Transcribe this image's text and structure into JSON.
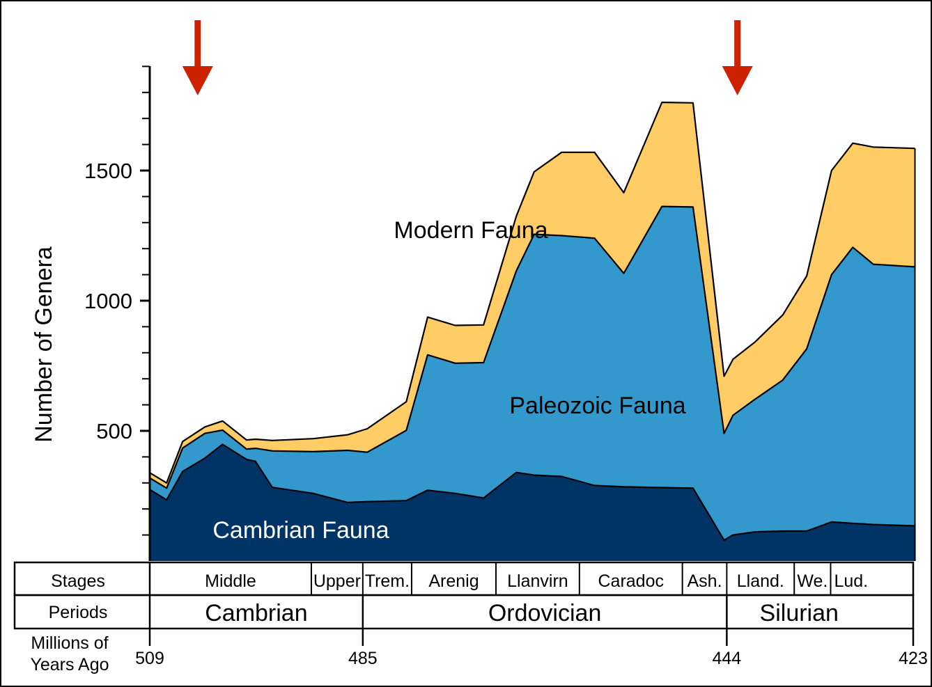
{
  "chart_data": {
    "type": "area",
    "stacked": true,
    "ylabel": "Number of Genera",
    "xlabel": "",
    "ylim": [
      0,
      1900
    ],
    "y_ticks": [
      500,
      1000,
      1500
    ],
    "y_minor_step": 100,
    "x_axis_reversed": true,
    "x": [
      509.0,
      507.1,
      505.3,
      502.8,
      500.8,
      498.1,
      497.1,
      495.2,
      490.6,
      486.7,
      484.5,
      480.1,
      477.7,
      474.6,
      471.4,
      467.7,
      465.7,
      462.6,
      458.9,
      455.6,
      451.3,
      447.8,
      444.3,
      443.3,
      440.8,
      437.7,
      435.0,
      432.2,
      429.8,
      427.5,
      422.8
    ],
    "series": [
      {
        "name": "Cambrian Fauna",
        "color": "#003366",
        "values": [
          274,
          235,
          344,
          395,
          448,
          390,
          383,
          283,
          260,
          225,
          228,
          232,
          272,
          260,
          242,
          340,
          330,
          325,
          290,
          285,
          282,
          280,
          80,
          100,
          112,
          115,
          115,
          150,
          145,
          140,
          135
        ]
      },
      {
        "name": "Paleozoic Fauna",
        "color": "#3399CC",
        "values": [
          45,
          45,
          90,
          95,
          55,
          40,
          50,
          140,
          160,
          200,
          190,
          270,
          520,
          500,
          520,
          775,
          925,
          925,
          950,
          820,
          1080,
          1080,
          410,
          460,
          510,
          580,
          700,
          950,
          1060,
          1000,
          995
        ]
      },
      {
        "name": "Modern Fauna",
        "color": "#FFCC66",
        "values": [
          20,
          20,
          25,
          25,
          35,
          35,
          35,
          40,
          50,
          60,
          90,
          110,
          145,
          145,
          145,
          210,
          240,
          320,
          330,
          310,
          400,
          400,
          220,
          215,
          220,
          250,
          280,
          400,
          400,
          450,
          455
        ]
      }
    ],
    "annotations": [
      {
        "text": "Modern Fauna",
        "series": "Modern Fauna"
      },
      {
        "text": "Paleozoic Fauna",
        "series": "Paleozoic Fauna"
      },
      {
        "text": "Cambrian Fauna",
        "series": "Cambrian Fauna"
      }
    ],
    "arrows": [
      {
        "x": 503.6,
        "color": "#CC2200",
        "direction": "down"
      },
      {
        "x": 442.8,
        "color": "#CC2200",
        "direction": "down"
      }
    ],
    "timescale": {
      "stages_label": "Stages",
      "periods_label": "Periods",
      "years_label_line1": "Millions of",
      "years_label_line2": "Years Ago",
      "stages": [
        {
          "name": "Middle",
          "start": 509.0,
          "end": 490.8
        },
        {
          "name": "Upper",
          "start": 490.8,
          "end": 485.0
        },
        {
          "name": "Trem.",
          "start": 485.0,
          "end": 479.5
        },
        {
          "name": "Arenig",
          "start": 479.5,
          "end": 470.0
        },
        {
          "name": "Llanvirn",
          "start": 470.0,
          "end": 460.6
        },
        {
          "name": "Caradoc",
          "start": 460.6,
          "end": 449.0
        },
        {
          "name": "Ash.",
          "start": 449.0,
          "end": 444.0
        },
        {
          "name": "Lland.",
          "start": 444.0,
          "end": 436.4
        },
        {
          "name": "We.",
          "start": 436.4,
          "end": 432.3
        },
        {
          "name": "Lud.",
          "start": 432.3,
          "end": 427.7
        }
      ],
      "periods": [
        {
          "name": "Cambrian",
          "start": 509.0,
          "end": 485.0
        },
        {
          "name": "Ordovician",
          "start": 485.0,
          "end": 444.0
        },
        {
          "name": "Silurian",
          "start": 444.0,
          "end": 427.7
        }
      ],
      "year_ticks": [
        {
          "value": 509,
          "label": "509"
        },
        {
          "value": 485,
          "label": "485"
        },
        {
          "value": 444,
          "label": "444"
        },
        {
          "value": 423,
          "label": "423"
        }
      ]
    }
  }
}
